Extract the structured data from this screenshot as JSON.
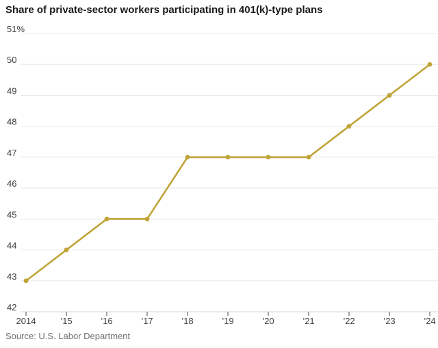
{
  "title": "Share of private-sector workers participating in 401(k)-type plans",
  "source": "Source: U.S. Labor Department",
  "chart_data": {
    "type": "line",
    "title": "Share of private-sector workers participating in 401(k)-type plans",
    "x": [
      2014,
      2015,
      2016,
      2017,
      2018,
      2019,
      2020,
      2021,
      2022,
      2023,
      2024
    ],
    "x_tick_labels": [
      "2014",
      "’15",
      "’16",
      "’17",
      "’18",
      "’19",
      "’20",
      "’21",
      "’22",
      "’23",
      "’24"
    ],
    "series": [
      {
        "name": "Share of private-sector workers participating in 401(k)-type plans",
        "values": [
          43,
          44,
          45,
          45,
          47,
          47,
          47,
          47,
          48,
          49,
          50
        ]
      }
    ],
    "ylim": [
      42,
      51
    ],
    "y_ticks": [
      42,
      43,
      44,
      45,
      46,
      47,
      48,
      49,
      50,
      51
    ],
    "y_tick_labels": [
      "42",
      "43",
      "44",
      "45",
      "46",
      "47",
      "48",
      "49",
      "50",
      "51%"
    ],
    "unit": "%",
    "grid": true,
    "legend": "none",
    "xlabel": "",
    "ylabel": "",
    "colors": {
      "line": "#c0a438",
      "marker": "#c0a438",
      "grid": "#e8e8e8",
      "axis_line": "#d6d6d6",
      "tick": "#4a4a4a",
      "tick_label": "#3d3d3d",
      "title": "#1a1a1a",
      "source": "#6f6f6f",
      "background": "#ffffff"
    }
  }
}
